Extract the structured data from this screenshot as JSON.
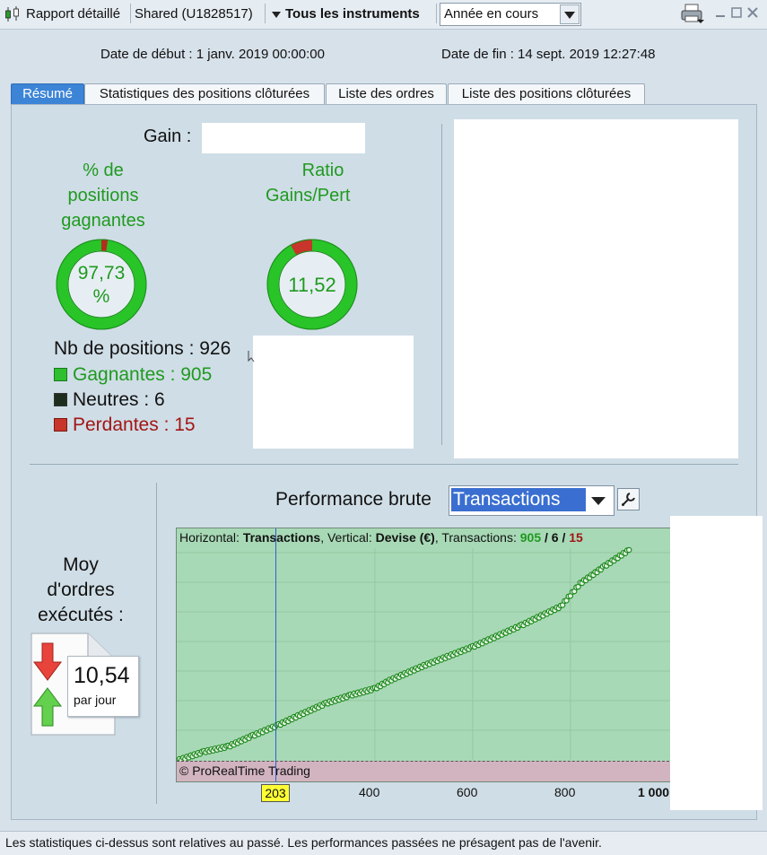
{
  "toolbar": {
    "report_label": "Rapport détaillé",
    "account_label": "Shared (U1828517)",
    "instruments_label": "Tous les instruments",
    "period_select": "Année en cours"
  },
  "dates": {
    "start": "Date de début : 1 janv. 2019 00:00:00",
    "end": "Date de fin : 14 sept. 2019 12:27:48"
  },
  "tabs": [
    "Résumé",
    "Statistiques des positions clôturées",
    "Liste des ordres",
    "Liste des positions clôturées"
  ],
  "summary": {
    "gain_label": "Gain :",
    "winning_pct_title_1": "% de",
    "winning_pct_title_2": "positions",
    "winning_pct_title_3": "gagnantes",
    "winning_pct_value_1": "97,73",
    "winning_pct_value_2": "%",
    "winning_pct_fraction": 0.9773,
    "ratio_title_1": "Ratio",
    "ratio_title_2": "Gains/Pert",
    "ratio_value": "11,52",
    "positions_count": "Nb de positions : 926",
    "winners": "Gagnantes : 905",
    "neutral": "Neutres : 6",
    "losers": "Perdantes : 15",
    "colors": {
      "win": "#1f9a1f",
      "lose": "#a31515",
      "neutral": "#1e2e1e"
    }
  },
  "orders": {
    "title_1": "Moy",
    "title_2": "d'ordres",
    "title_3": "exécutés :",
    "value": "10,54",
    "unit": "par jour"
  },
  "performance": {
    "label": "Performance brute",
    "select_value": "Transactions",
    "legend_horizontal": "Horizontal: ",
    "legend_horizontal_value": "Transactions",
    "legend_vertical": ", Vertical: ",
    "legend_vertical_value": "Devise (€)",
    "legend_transactions": ", Transactions: ",
    "legend_win": "905",
    "legend_sep1": " / ",
    "legend_neutral": "6",
    "legend_sep2": " / ",
    "legend_lose": "15",
    "copyright": "© ProRealTime Trading",
    "cursor_label": "203",
    "x_ticks": [
      "400",
      "600",
      "800",
      "1 000"
    ]
  },
  "chart_data": {
    "type": "line",
    "title": "",
    "xlabel": "Transactions",
    "ylabel": "Devise (€)",
    "xlim": [
      0,
      1000
    ],
    "x_ticks": [
      400,
      600,
      800,
      1000
    ],
    "cursor_x": 203,
    "series": [
      {
        "values": [
          [
            0,
            0
          ],
          [
            50,
            6
          ],
          [
            100,
            10
          ],
          [
            150,
            18
          ],
          [
            203,
            26
          ],
          [
            250,
            34
          ],
          [
            300,
            42
          ],
          [
            350,
            48
          ],
          [
            400,
            53
          ],
          [
            430,
            59
          ],
          [
            500,
            70
          ],
          [
            600,
            84
          ],
          [
            700,
            100
          ],
          [
            780,
            114
          ],
          [
            820,
            131
          ],
          [
            870,
            144
          ],
          [
            920,
            156
          ]
        ]
      }
    ]
  },
  "footer": "Les statistiques ci-dessus sont relatives au passé. Les performances passées ne présagent pas de l'avenir."
}
